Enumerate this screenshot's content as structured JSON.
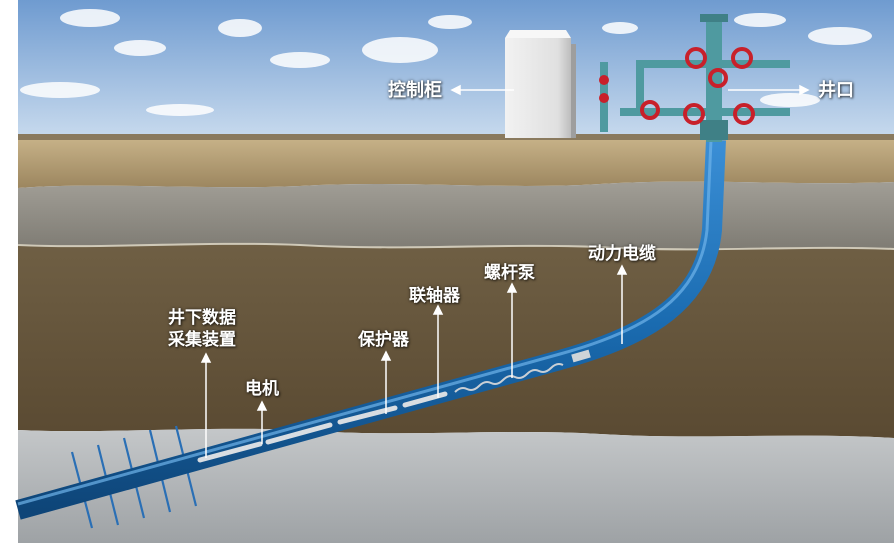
{
  "labels": {
    "control_cabinet": "控制柜",
    "wellhead": "井口",
    "power_cable": "动力电缆",
    "screw_pump": "螺杆泵",
    "coupling": "联轴器",
    "protector": "保护器",
    "downhole_data_line1": "井下数据",
    "downhole_data_line2": "采集装置",
    "motor": "电机"
  },
  "colors": {
    "sky_top": "#6f9bd0",
    "sky_bottom": "#c3d6ea",
    "soil_surface": "#b9a37c",
    "clay_layer": "#8f8d86",
    "soil_layer": "#6b5a3e",
    "rock_layer": "#b9bcbe",
    "pipe_blue": "#1a6bb0",
    "valve_red": "#c8202a",
    "wellhead_teal": "#4f9aa0",
    "label_text": "#ffffff"
  },
  "icons": {
    "cabinet": "control-cabinet-icon",
    "wellhead": "wellhead-christmas-tree-icon",
    "valve": "valve-wheel-icon"
  }
}
